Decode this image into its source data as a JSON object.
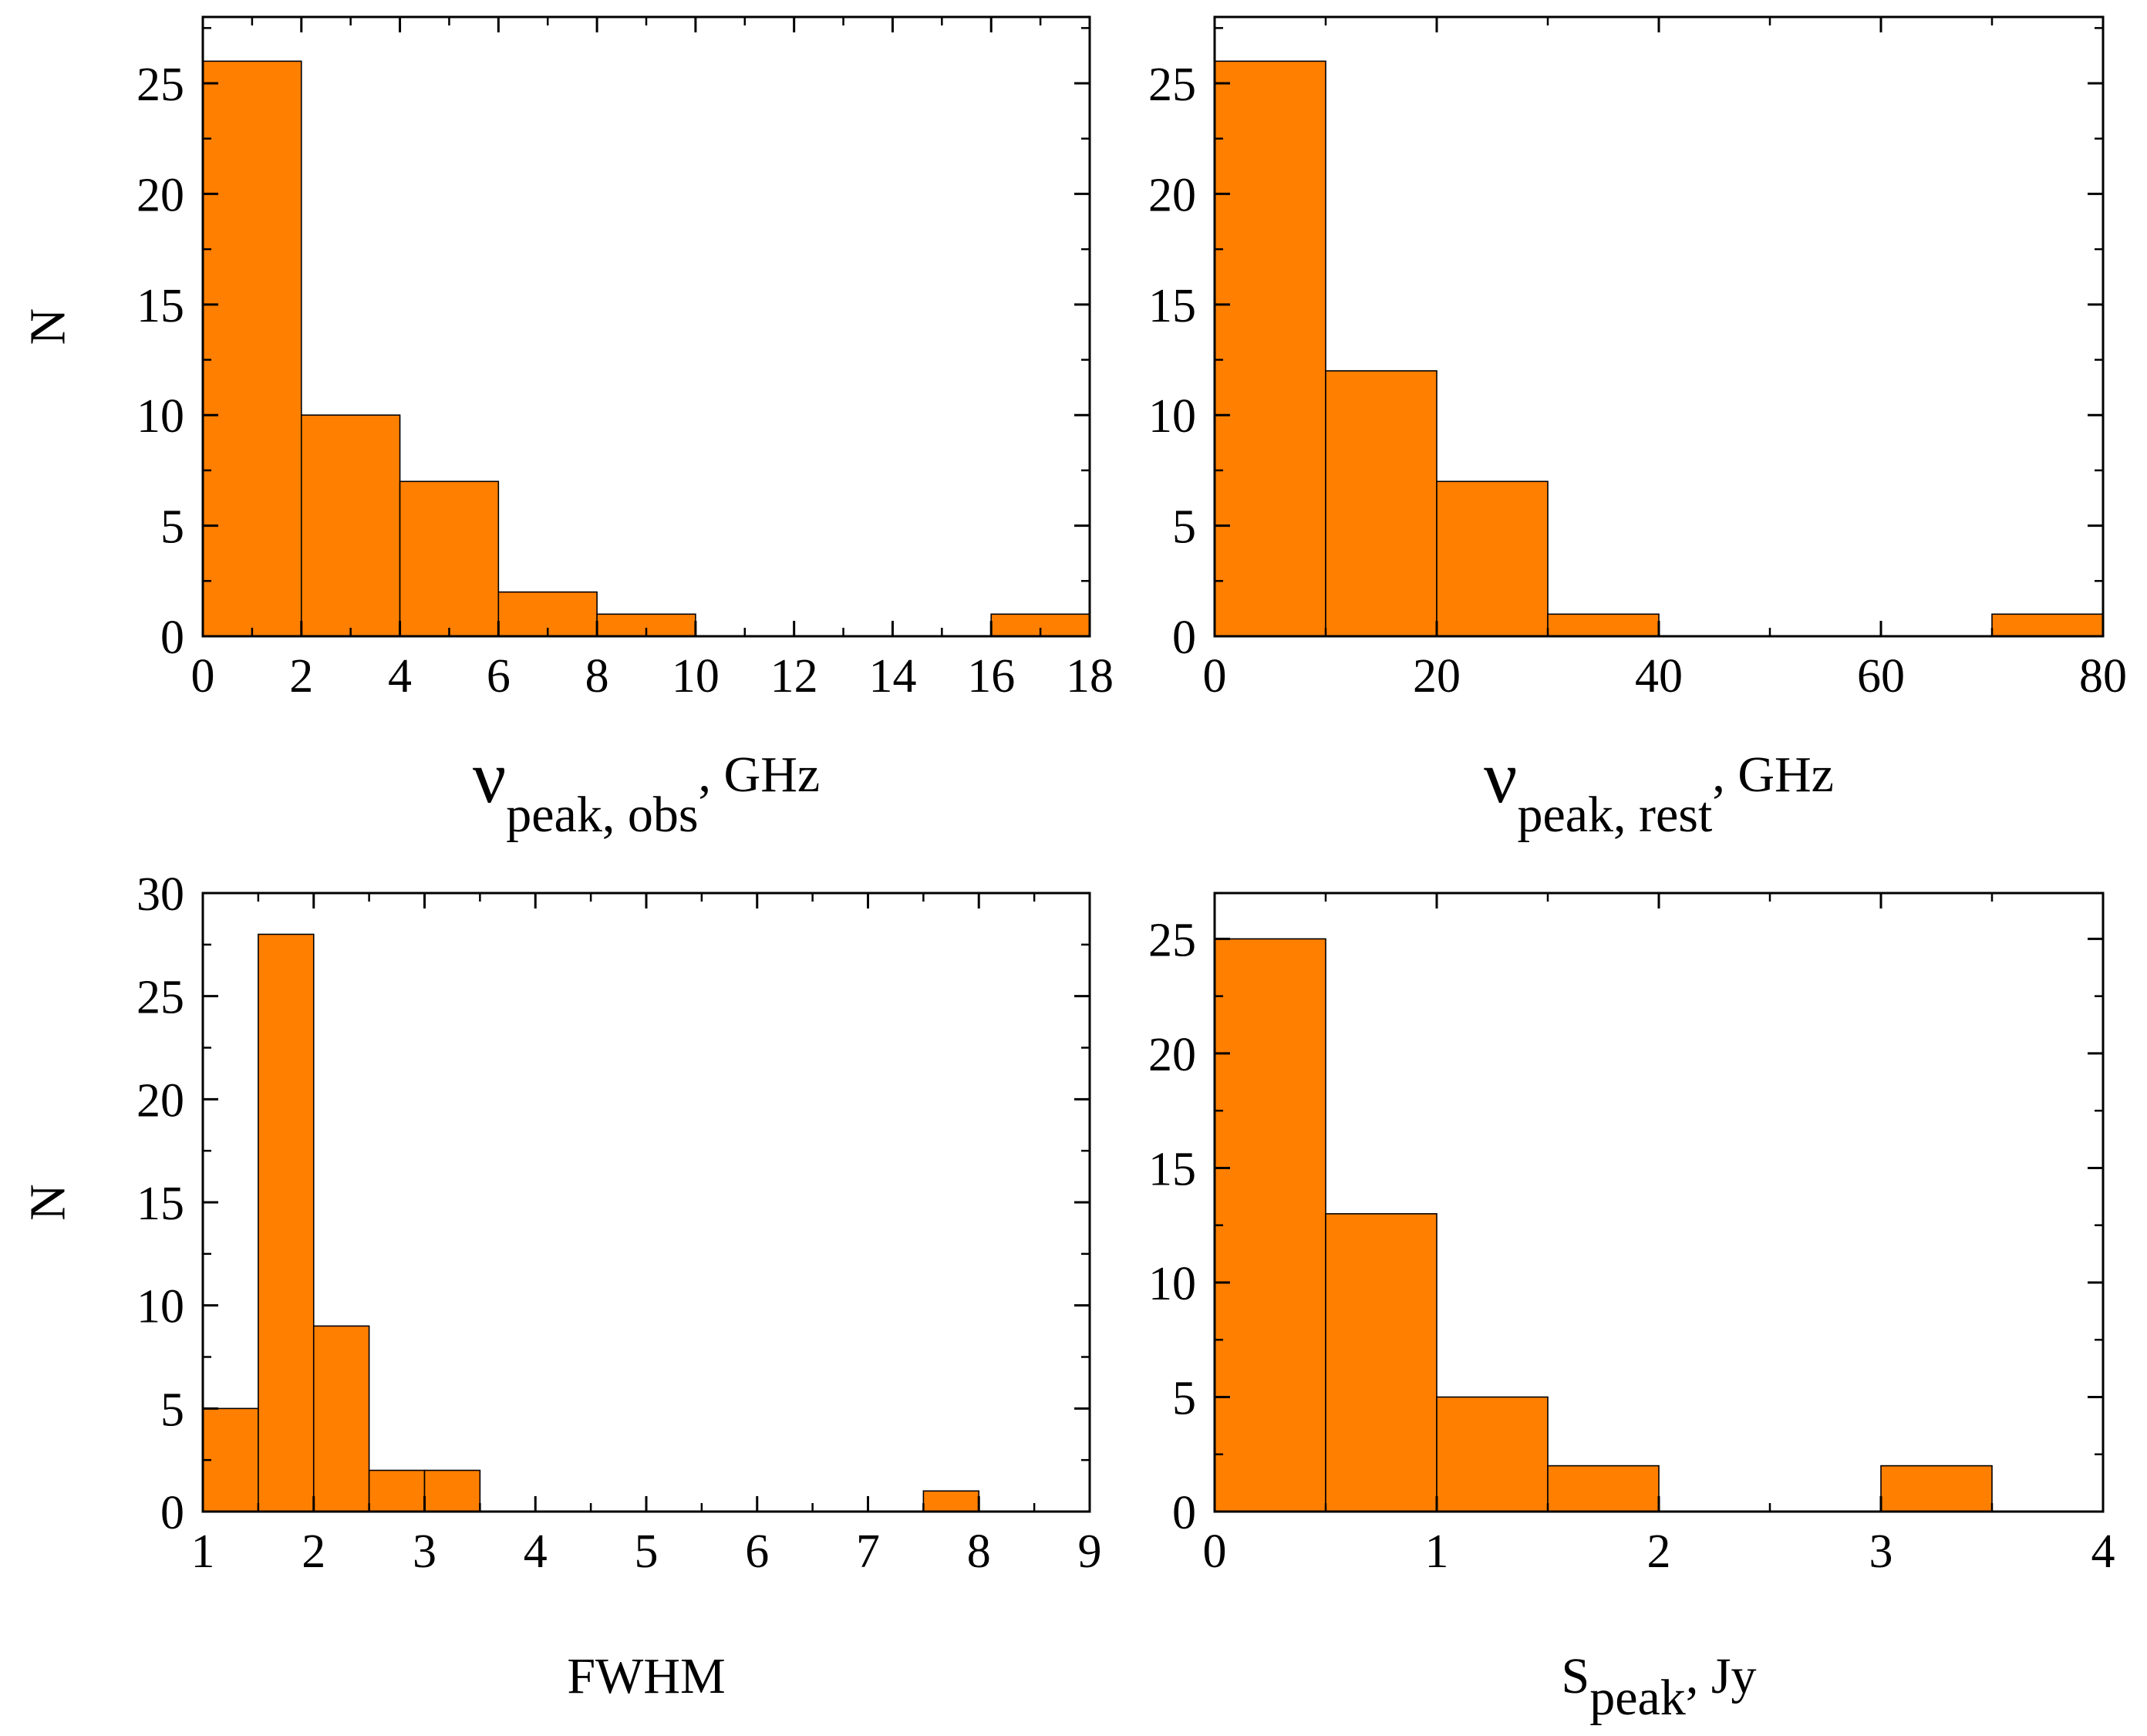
{
  "colors": {
    "bar_fill": "#ff7f00",
    "bar_stroke": "#000000",
    "axis": "#000000"
  },
  "chart_data": [
    {
      "type": "bar",
      "title": "",
      "xlabel": {
        "main": "ν",
        "sub": "peak, obs",
        "unit": ", GHz"
      },
      "ylabel": "N",
      "xlim": [
        0,
        18
      ],
      "ylim": [
        0,
        28
      ],
      "xticks": [
        0,
        2,
        4,
        6,
        8,
        10,
        12,
        14,
        16,
        18
      ],
      "xtick_labels": [
        "0",
        "2",
        "4",
        "6",
        "8",
        "10",
        "12",
        "14",
        "16",
        "18"
      ],
      "yticks": [
        0,
        5,
        10,
        15,
        20,
        25
      ],
      "ytick_labels": [
        "0",
        "5",
        "10",
        "15",
        "20",
        "25"
      ],
      "xminor": 1,
      "yminor": 2.5,
      "bins": [
        {
          "x0": 0,
          "x1": 2,
          "count": 26
        },
        {
          "x0": 2,
          "x1": 4,
          "count": 10
        },
        {
          "x0": 4,
          "x1": 6,
          "count": 7
        },
        {
          "x0": 6,
          "x1": 8,
          "count": 2
        },
        {
          "x0": 8,
          "x1": 10,
          "count": 1
        },
        {
          "x0": 16,
          "x1": 18,
          "count": 1
        }
      ]
    },
    {
      "type": "bar",
      "title": "",
      "xlabel": {
        "main": "ν",
        "sub": "peak, rest",
        "unit": ", GHz"
      },
      "ylabel": "",
      "xlim": [
        0,
        80
      ],
      "ylim": [
        0,
        28
      ],
      "xticks": [
        0,
        20,
        40,
        60,
        80
      ],
      "xtick_labels": [
        "0",
        "20",
        "40",
        "60",
        "80"
      ],
      "yticks": [
        0,
        5,
        10,
        15,
        20,
        25
      ],
      "ytick_labels": [
        "0",
        "5",
        "10",
        "15",
        "20",
        "25"
      ],
      "xminor": 10,
      "yminor": 2.5,
      "bins": [
        {
          "x0": 0,
          "x1": 10,
          "count": 26
        },
        {
          "x0": 10,
          "x1": 20,
          "count": 12
        },
        {
          "x0": 20,
          "x1": 30,
          "count": 7
        },
        {
          "x0": 30,
          "x1": 40,
          "count": 1
        },
        {
          "x0": 70,
          "x1": 80,
          "count": 1
        }
      ]
    },
    {
      "type": "bar",
      "title": "",
      "xlabel": {
        "main": "FWHM",
        "sub": "",
        "unit": ""
      },
      "ylabel": "N",
      "xlim": [
        1,
        9
      ],
      "ylim": [
        0,
        30
      ],
      "xticks": [
        1,
        2,
        3,
        4,
        5,
        6,
        7,
        8,
        9
      ],
      "xtick_labels": [
        "1",
        "2",
        "3",
        "4",
        "5",
        "6",
        "7",
        "8",
        "9"
      ],
      "yticks": [
        0,
        5,
        10,
        15,
        20,
        25,
        30
      ],
      "ytick_labels": [
        "0",
        "5",
        "10",
        "15",
        "20",
        "25",
        "30"
      ],
      "xminor": 0.5,
      "yminor": 2.5,
      "bins": [
        {
          "x0": 1,
          "x1": 1.5,
          "count": 5
        },
        {
          "x0": 1.5,
          "x1": 2,
          "count": 28
        },
        {
          "x0": 2,
          "x1": 2.5,
          "count": 9
        },
        {
          "x0": 2.5,
          "x1": 3,
          "count": 2
        },
        {
          "x0": 3,
          "x1": 3.5,
          "count": 2
        },
        {
          "x0": 7.5,
          "x1": 8,
          "count": 1
        }
      ]
    },
    {
      "type": "bar",
      "title": "",
      "xlabel": {
        "main": "S",
        "sub": "peak",
        "unit": ", Jy"
      },
      "ylabel": "",
      "xlim": [
        0,
        4
      ],
      "ylim": [
        0,
        27
      ],
      "xticks": [
        0,
        1,
        2,
        3,
        4
      ],
      "xtick_labels": [
        "0",
        "1",
        "2",
        "3",
        "4"
      ],
      "yticks": [
        0,
        5,
        10,
        15,
        20,
        25
      ],
      "ytick_labels": [
        "0",
        "5",
        "10",
        "15",
        "20",
        "25"
      ],
      "xminor": 0.5,
      "yminor": 2.5,
      "bins": [
        {
          "x0": 0,
          "x1": 0.5,
          "count": 25
        },
        {
          "x0": 0.5,
          "x1": 1,
          "count": 13
        },
        {
          "x0": 1,
          "x1": 1.5,
          "count": 5
        },
        {
          "x0": 1.5,
          "x1": 2,
          "count": 2
        },
        {
          "x0": 3,
          "x1": 3.5,
          "count": 2
        }
      ]
    }
  ]
}
